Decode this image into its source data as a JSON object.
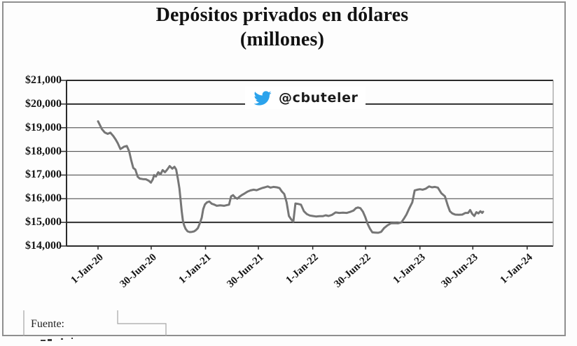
{
  "figure": {
    "title_line1": "Depósitos privados en dólares",
    "title_line2": "(millones)",
    "source_label": "Fuente:"
  },
  "colors": {
    "line": "#767676",
    "grid_minor": "#3f3f3f",
    "grid_major": "#2e2e2e",
    "axis": "#2b2b2b",
    "plot_right_border": "#9a9a9a",
    "outer_border": "#8f8f8f",
    "title_text": "#121212",
    "twitter_blue": "#2ba3ec"
  },
  "chart_data": {
    "type": "line",
    "title": "Depósitos privados en dólares (millones)",
    "xlabel": "",
    "ylabel": "",
    "ylim": [
      14000,
      21000
    ],
    "grid": true,
    "emphasized_gridline_values": [
      20000,
      15000
    ],
    "annotation": {
      "handle": "@cbuteler",
      "icon": "twitter-bird-icon",
      "color": "#2ba3ec"
    },
    "yticks": [
      [
        21000,
        "$21,000"
      ],
      [
        20000,
        "$20,000"
      ],
      [
        19000,
        "$19,000"
      ],
      [
        18000,
        "$18,000"
      ],
      [
        17000,
        "$17,000"
      ],
      [
        16000,
        "$16,000"
      ],
      [
        15000,
        "$15,000"
      ],
      [
        14000,
        "$14,000"
      ]
    ],
    "xticks": [
      [
        "2020-01-01",
        "1-Jan-20"
      ],
      [
        "2020-06-30",
        "30-Jun-20"
      ],
      [
        "2021-01-01",
        "1-Jan-21"
      ],
      [
        "2021-06-30",
        "30-Jun-21"
      ],
      [
        "2022-01-01",
        "1-Jan-22"
      ],
      [
        "2022-06-30",
        "30-Jun-22"
      ],
      [
        "2023-01-01",
        "1-Jan-23"
      ],
      [
        "2023-06-30",
        "30-Jun-23"
      ],
      [
        "2024-01-01",
        "1-Jan-24"
      ]
    ],
    "series": [
      {
        "name": "Depósitos privados en dólares (millones USD)",
        "points": [
          [
            "2020-01-01",
            19270
          ],
          [
            "2020-01-08",
            19100
          ],
          [
            "2020-01-14",
            18940
          ],
          [
            "2020-01-24",
            18800
          ],
          [
            "2020-02-03",
            18740
          ],
          [
            "2020-02-12",
            18790
          ],
          [
            "2020-02-22",
            18650
          ],
          [
            "2020-03-01",
            18500
          ],
          [
            "2020-03-08",
            18350
          ],
          [
            "2020-03-17",
            18100
          ],
          [
            "2020-03-24",
            18150
          ],
          [
            "2020-03-30",
            18200
          ],
          [
            "2020-04-08",
            18230
          ],
          [
            "2020-04-16",
            18000
          ],
          [
            "2020-04-23",
            17620
          ],
          [
            "2020-04-30",
            17300
          ],
          [
            "2020-05-07",
            17230
          ],
          [
            "2020-05-15",
            16930
          ],
          [
            "2020-05-22",
            16850
          ],
          [
            "2020-06-01",
            16830
          ],
          [
            "2020-06-12",
            16820
          ],
          [
            "2020-06-22",
            16760
          ],
          [
            "2020-06-29",
            16680
          ],
          [
            "2020-07-06",
            16830
          ],
          [
            "2020-07-10",
            17000
          ],
          [
            "2020-07-16",
            16940
          ],
          [
            "2020-07-24",
            17120
          ],
          [
            "2020-08-01",
            17030
          ],
          [
            "2020-08-08",
            17210
          ],
          [
            "2020-08-16",
            17120
          ],
          [
            "2020-08-24",
            17240
          ],
          [
            "2020-09-01",
            17380
          ],
          [
            "2020-09-10",
            17270
          ],
          [
            "2020-09-17",
            17350
          ],
          [
            "2020-09-23",
            17230
          ],
          [
            "2020-09-29",
            16830
          ],
          [
            "2020-10-04",
            16440
          ],
          [
            "2020-10-08",
            15950
          ],
          [
            "2020-10-12",
            15470
          ],
          [
            "2020-10-16",
            15070
          ],
          [
            "2020-10-20",
            14880
          ],
          [
            "2020-10-25",
            14730
          ],
          [
            "2020-11-01",
            14620
          ],
          [
            "2020-11-08",
            14590
          ],
          [
            "2020-11-16",
            14600
          ],
          [
            "2020-11-23",
            14620
          ],
          [
            "2020-11-29",
            14670
          ],
          [
            "2020-12-06",
            14760
          ],
          [
            "2020-12-13",
            14970
          ],
          [
            "2020-12-19",
            15200
          ],
          [
            "2020-12-24",
            15560
          ],
          [
            "2020-12-30",
            15760
          ],
          [
            "2021-01-06",
            15850
          ],
          [
            "2021-01-14",
            15880
          ],
          [
            "2021-01-22",
            15790
          ],
          [
            "2021-01-29",
            15760
          ],
          [
            "2021-02-08",
            15700
          ],
          [
            "2021-02-20",
            15720
          ],
          [
            "2021-03-05",
            15700
          ],
          [
            "2021-03-15",
            15730
          ],
          [
            "2021-03-22",
            15750
          ],
          [
            "2021-03-29",
            16100
          ],
          [
            "2021-04-05",
            16150
          ],
          [
            "2021-04-12",
            16050
          ],
          [
            "2021-04-19",
            16000
          ],
          [
            "2021-04-26",
            16080
          ],
          [
            "2021-05-04",
            16150
          ],
          [
            "2021-05-14",
            16220
          ],
          [
            "2021-05-24",
            16300
          ],
          [
            "2021-06-03",
            16350
          ],
          [
            "2021-06-14",
            16380
          ],
          [
            "2021-06-24",
            16360
          ],
          [
            "2021-07-02",
            16400
          ],
          [
            "2021-07-12",
            16450
          ],
          [
            "2021-07-22",
            16480
          ],
          [
            "2021-08-01",
            16520
          ],
          [
            "2021-08-10",
            16470
          ],
          [
            "2021-08-20",
            16500
          ],
          [
            "2021-09-01",
            16480
          ],
          [
            "2021-09-10",
            16450
          ],
          [
            "2021-09-18",
            16300
          ],
          [
            "2021-09-26",
            16200
          ],
          [
            "2021-10-04",
            15850
          ],
          [
            "2021-10-12",
            15270
          ],
          [
            "2021-10-20",
            15120
          ],
          [
            "2021-10-27",
            15030
          ],
          [
            "2021-11-03",
            15800
          ],
          [
            "2021-11-12",
            15780
          ],
          [
            "2021-11-22",
            15750
          ],
          [
            "2021-12-02",
            15470
          ],
          [
            "2021-12-12",
            15350
          ],
          [
            "2021-12-22",
            15290
          ],
          [
            "2022-01-01",
            15270
          ],
          [
            "2022-01-12",
            15250
          ],
          [
            "2022-01-24",
            15260
          ],
          [
            "2022-02-04",
            15260
          ],
          [
            "2022-02-14",
            15300
          ],
          [
            "2022-02-24",
            15270
          ],
          [
            "2022-03-08",
            15320
          ],
          [
            "2022-03-20",
            15420
          ],
          [
            "2022-04-01",
            15400
          ],
          [
            "2022-04-14",
            15410
          ],
          [
            "2022-04-27",
            15400
          ],
          [
            "2022-05-10",
            15450
          ],
          [
            "2022-05-20",
            15500
          ],
          [
            "2022-05-28",
            15600
          ],
          [
            "2022-06-04",
            15630
          ],
          [
            "2022-06-12",
            15600
          ],
          [
            "2022-06-21",
            15450
          ],
          [
            "2022-06-29",
            15220
          ],
          [
            "2022-07-07",
            14930
          ],
          [
            "2022-07-15",
            14730
          ],
          [
            "2022-07-23",
            14580
          ],
          [
            "2022-08-01",
            14570
          ],
          [
            "2022-08-12",
            14560
          ],
          [
            "2022-08-22",
            14600
          ],
          [
            "2022-09-01",
            14760
          ],
          [
            "2022-09-12",
            14870
          ],
          [
            "2022-09-24",
            14960
          ],
          [
            "2022-10-06",
            14970
          ],
          [
            "2022-10-18",
            14960
          ],
          [
            "2022-10-30",
            15000
          ],
          [
            "2022-11-08",
            15170
          ],
          [
            "2022-11-16",
            15330
          ],
          [
            "2022-11-26",
            15600
          ],
          [
            "2022-12-06",
            15850
          ],
          [
            "2022-12-14",
            16350
          ],
          [
            "2022-12-23",
            16380
          ],
          [
            "2023-01-01",
            16400
          ],
          [
            "2023-01-10",
            16380
          ],
          [
            "2023-01-20",
            16420
          ],
          [
            "2023-02-01",
            16520
          ],
          [
            "2023-02-11",
            16480
          ],
          [
            "2023-02-21",
            16500
          ],
          [
            "2023-03-03",
            16470
          ],
          [
            "2023-03-15",
            16230
          ],
          [
            "2023-03-27",
            16100
          ],
          [
            "2023-04-06",
            15700
          ],
          [
            "2023-04-13",
            15470
          ],
          [
            "2023-04-21",
            15380
          ],
          [
            "2023-05-01",
            15330
          ],
          [
            "2023-05-13",
            15320
          ],
          [
            "2023-05-25",
            15330
          ],
          [
            "2023-06-05",
            15400
          ],
          [
            "2023-06-14",
            15400
          ],
          [
            "2023-06-21",
            15520
          ],
          [
            "2023-06-28",
            15360
          ],
          [
            "2023-07-05",
            15270
          ],
          [
            "2023-07-12",
            15430
          ],
          [
            "2023-07-19",
            15380
          ],
          [
            "2023-07-26",
            15470
          ],
          [
            "2023-08-01",
            15400
          ],
          [
            "2023-08-04",
            15450
          ]
        ]
      }
    ]
  }
}
